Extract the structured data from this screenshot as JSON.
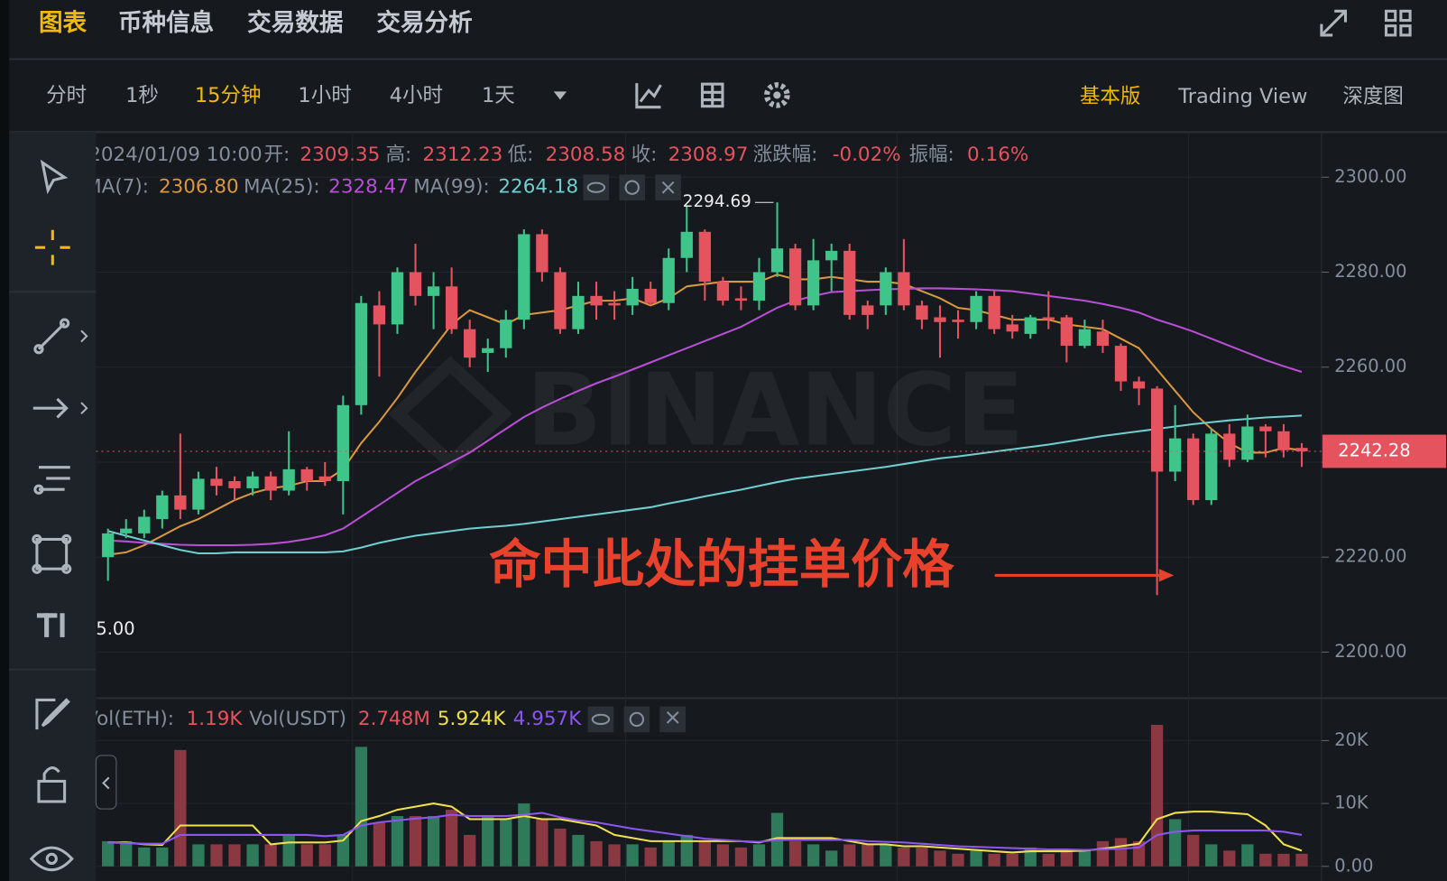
{
  "tabs": [
    "图表",
    "币种信息",
    "交易数据",
    "交易分析"
  ],
  "intervals": [
    "分时",
    "1秒",
    "15分钟",
    "1小时",
    "4小时",
    "1天"
  ],
  "views": [
    "基本版",
    "Trading View",
    "深度图"
  ],
  "chart_data": {
    "type": "candlestick",
    "info": {
      "time": "2024/01/09 10:00",
      "open_name": "开:",
      "open": "2309.35",
      "high_name": "高:",
      "high": "2312.23",
      "low_name": "低:",
      "low": "2308.58",
      "close_name": "收:",
      "close": "2308.97",
      "change_name": "涨跌幅:",
      "change": "-0.02%",
      "amp_name": "振幅:",
      "amp": "0.16%"
    },
    "up_color": "#3fc48a",
    "down_color": "#e5535f",
    "candles": {
      "open": [
        2220,
        2225,
        2225,
        2228,
        2233,
        2230,
        2236.5,
        2236,
        2234.5,
        2237,
        2234,
        2238.5,
        2237,
        2236,
        2252,
        2273,
        2269,
        2280,
        2275,
        2277,
        2268,
        2263,
        2264,
        2270,
        2288,
        2280,
        2268,
        2275,
        2273.5,
        2273,
        2276.5,
        2273.5,
        2283,
        2288.5,
        2278,
        2274.5,
        2274,
        2280,
        2285,
        2273,
        2282.5,
        2284.5,
        2273,
        2273,
        2280,
        2273,
        2270.5,
        2270,
        2269.5,
        2275,
        2269,
        2267,
        2270.5,
        2270.5,
        2264.5,
        2267.5,
        2264.5,
        2257,
        2255.5,
        2238,
        2245,
        2232,
        2246,
        2240.5,
        2247.5,
        2246.5,
        2243
      ],
      "high": [
        2226,
        2228,
        2230,
        2234,
        2246,
        2238,
        2239,
        2237,
        2238,
        2238,
        2246.5,
        2239,
        2240,
        2254,
        2275,
        2276,
        2281,
        2286,
        2280,
        2281,
        2270,
        2266,
        2272,
        2289,
        2289,
        2281,
        2278,
        2278,
        2276,
        2279,
        2278,
        2285,
        2294,
        2289,
        2279,
        2277,
        2283,
        2294.69,
        2286,
        2287,
        2286,
        2286,
        2274,
        2281,
        2287,
        2274,
        2273,
        2272,
        2276,
        2276,
        2271,
        2271,
        2276,
        2271,
        2270,
        2270,
        2265,
        2258,
        2256,
        2252,
        2246,
        2247,
        2248,
        2250,
        2248,
        2248,
        2244
      ],
      "low": [
        2215,
        2224,
        2224,
        2226,
        2228,
        2229,
        2233,
        2232,
        2233,
        2232,
        2233,
        2234,
        2235,
        2229,
        2250,
        2258,
        2267,
        2273,
        2268,
        2267,
        2260,
        2259,
        2262,
        2268,
        2278,
        2267,
        2267,
        2270,
        2270,
        2271,
        2273,
        2272,
        2280,
        2274,
        2273,
        2272,
        2272,
        2279,
        2272,
        2272,
        2276,
        2270,
        2268,
        2271,
        2272,
        2268,
        2262,
        2266,
        2268,
        2267,
        2266,
        2266,
        2268,
        2261,
        2264,
        2263,
        2255,
        2252,
        2212,
        2236,
        2231,
        2231,
        2239,
        2240,
        2241,
        2241,
        2239
      ],
      "close": [
        2225,
        2226,
        2228.5,
        2233,
        2230,
        2236.5,
        2235,
        2234.5,
        2237,
        2234,
        2238.5,
        2236,
        2236,
        2252,
        2273.5,
        2269,
        2280,
        2275,
        2277,
        2268,
        2262,
        2264,
        2270,
        2288,
        2280,
        2268,
        2275,
        2273,
        2273,
        2276.5,
        2273.5,
        2283,
        2288.5,
        2278,
        2274,
        2274,
        2280,
        2285,
        2273,
        2282.5,
        2284.5,
        2271,
        2271,
        2280,
        2273,
        2270,
        2269.5,
        2269.5,
        2275,
        2268,
        2267.5,
        2270.5,
        2270,
        2264.5,
        2268,
        2264.5,
        2257,
        2255.5,
        2238,
        2245,
        2232,
        2246,
        2240.5,
        2247.5,
        2246.5,
        2242.5,
        2242.28
      ]
    },
    "ma_series": [
      {
        "name": "MA(7):",
        "label": "2306.80",
        "color": "#d9973f",
        "values": [
          2220.5,
          2221,
          2222.5,
          2224.5,
          2226.5,
          2228,
          2230,
          2232,
          2233.5,
          2234.5,
          2235,
          2236,
          2236,
          2238.5,
          2244,
          2248.5,
          2253.5,
          2259,
          2264,
          2269,
          2272,
          2270.5,
          2269,
          2271,
          2271.5,
          2272,
          2273,
          2274,
          2274,
          2274.5,
          2273,
          2274.5,
          2277,
          2277.5,
          2278,
          2278,
          2278,
          2279.5,
          2278.5,
          2278.5,
          2279,
          2278.5,
          2278,
          2278,
          2277.5,
          2276,
          2274.5,
          2272.5,
          2272,
          2271,
          2270,
          2270,
          2270,
          2269,
          2268.5,
          2268,
          2266,
          2264,
          2259.5,
          2255,
          2250.5,
          2247,
          2244,
          2242,
          2242,
          2243,
          2242.5
        ]
      },
      {
        "name": "MA(25):",
        "label": "2328.47",
        "color": "#b84fd6",
        "values": [
          2223.5,
          2223.3,
          2223,
          2222.8,
          2222.6,
          2222.5,
          2222.5,
          2222.5,
          2222.6,
          2222.8,
          2223.2,
          2223.8,
          2224.6,
          2226,
          2228.5,
          2231,
          2233.5,
          2236,
          2238,
          2240,
          2242,
          2244.5,
          2247,
          2249.5,
          2251.5,
          2253.3,
          2255,
          2256.6,
          2258,
          2259.5,
          2261,
          2262.5,
          2264,
          2265.5,
          2267,
          2268.5,
          2270.5,
          2272.5,
          2274,
          2275,
          2275.8,
          2276,
          2276.2,
          2276.4,
          2276.5,
          2276.6,
          2276.6,
          2276.5,
          2276.4,
          2276.2,
          2276,
          2275.5,
          2275,
          2274.5,
          2274,
          2273.3,
          2272.5,
          2271.5,
          2270,
          2268.8,
          2267.5,
          2266,
          2264.5,
          2263,
          2261.5,
          2260.2,
          2259
        ]
      },
      {
        "name": "MA(99):",
        "label": "2264.18",
        "color": "#6fcfd0",
        "values": [
          2225.5,
          2224.5,
          2223.5,
          2222.5,
          2221.5,
          2220.8,
          2220.8,
          2221,
          2221,
          2221,
          2221,
          2221,
          2221,
          2221.2,
          2222,
          2223,
          2223.8,
          2224.5,
          2225,
          2225.5,
          2226,
          2226.3,
          2226.6,
          2227,
          2227.5,
          2228,
          2228.5,
          2229,
          2229.5,
          2230,
          2230.5,
          2231.3,
          2232,
          2232.8,
          2233.5,
          2234.2,
          2235,
          2235.8,
          2236.5,
          2237,
          2237.5,
          2238,
          2238.5,
          2239,
          2239.6,
          2240.2,
          2240.8,
          2241.2,
          2241.7,
          2242.2,
          2242.7,
          2243.2,
          2243.7,
          2244.3,
          2244.9,
          2245.5,
          2246,
          2246.5,
          2247,
          2247.5,
          2248,
          2248.4,
          2248.8,
          2249.1,
          2249.4,
          2249.6,
          2249.8
        ]
      }
    ],
    "ylim": [
      2190.5,
      2309.5
    ],
    "yticks": [
      {
        "value": 2200,
        "label": "2200.00"
      },
      {
        "value": 2220,
        "label": "2220.00"
      },
      {
        "value": 2240,
        "label": "2240.00"
      },
      {
        "value": 2260,
        "label": "2260.00"
      },
      {
        "value": 2280,
        "label": "2280.00"
      },
      {
        "value": 2300,
        "label": "2300.00"
      }
    ],
    "low_visible_label": "5.00",
    "annotation": "命中此处的挂单价格",
    "watermark": "BINANCE",
    "volume": {
      "name": "Vol(ETH):",
      "label": "1.19K",
      "usdt_name": "Vol(USDT)",
      "usdt_label": "2.748M",
      "up_color": "#2f7a5a",
      "down_color": "#8a3942",
      "values": [
        4000,
        4000,
        3000,
        3000,
        18500,
        3500,
        3500,
        3500,
        3500,
        3500,
        5000,
        3500,
        3500,
        5000,
        19000,
        7000,
        8000,
        8000,
        8000,
        9000,
        5000,
        8000,
        7500,
        10000,
        7500,
        6000,
        5000,
        4000,
        3500,
        3500,
        3000,
        4000,
        5000,
        4000,
        3500,
        3000,
        3500,
        8500,
        4000,
        3500,
        2500,
        3500,
        3500,
        3500,
        3000,
        3000,
        2500,
        2000,
        2500,
        2000,
        2000,
        3000,
        2000,
        2500,
        2500,
        4000,
        4500,
        4000,
        22500,
        7500,
        5000,
        3500,
        2500,
        3500,
        2000,
        2000,
        2000
      ],
      "ma_series": [
        {
          "label": "5.924K",
          "color": "#f0e04e",
          "values": [
            3800,
            3800,
            3500,
            3400,
            6500,
            6500,
            6500,
            6500,
            6500,
            3500,
            3800,
            3800,
            3800,
            4100,
            7200,
            8000,
            9000,
            9500,
            10000,
            9500,
            7500,
            7500,
            7500,
            8000,
            7500,
            7500,
            7000,
            6500,
            5000,
            4500,
            4000,
            4000,
            4000,
            4000,
            4000,
            4000,
            3800,
            4500,
            4500,
            4500,
            4500,
            4000,
            3500,
            3500,
            3200,
            3200,
            3000,
            2800,
            2600,
            2400,
            2200,
            2400,
            2400,
            2400,
            2500,
            2800,
            3200,
            3600,
            7500,
            8500,
            8700,
            8700,
            8500,
            8300,
            6500,
            3500,
            2500
          ]
        },
        {
          "label": "4.957K",
          "color": "#8b55f0",
          "values": [
            3800,
            3700,
            3600,
            3600,
            5000,
            5000,
            5000,
            5000,
            5000,
            5000,
            5000,
            5000,
            4800,
            5000,
            6500,
            7000,
            7300,
            7600,
            7800,
            8200,
            8000,
            8000,
            8000,
            8200,
            8500,
            7800,
            7300,
            7000,
            6500,
            6000,
            5600,
            5200,
            4800,
            4400,
            4200,
            4000,
            3900,
            4200,
            4200,
            4200,
            4200,
            4200,
            4000,
            3900,
            3800,
            3600,
            3400,
            3200,
            3100,
            3000,
            2900,
            2800,
            2700,
            2700,
            2600,
            2700,
            2800,
            3000,
            5000,
            5500,
            5700,
            5700,
            5700,
            5700,
            5700,
            5500,
            5000
          ]
        }
      ],
      "ylim": [
        -1000,
        26600
      ],
      "yticks": [
        {
          "value": 0,
          "label": "0.00"
        },
        {
          "value": 10000,
          "label": "10K"
        },
        {
          "value": 20000,
          "label": "20K"
        }
      ]
    }
  }
}
